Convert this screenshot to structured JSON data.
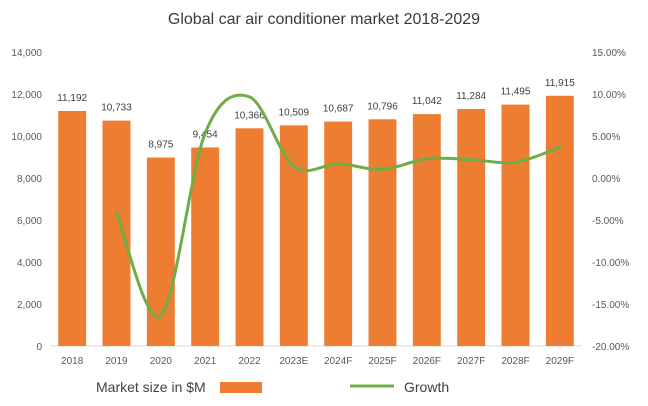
{
  "chart_data": {
    "type": "bar",
    "title": "Global car air conditioner market 2018-2029",
    "categories": [
      "2018",
      "2019",
      "2020",
      "2021",
      "2022",
      "2023E",
      "2024F",
      "2025F",
      "2026F",
      "2027F",
      "2028F",
      "2029F"
    ],
    "series": [
      {
        "name": "Market size in $M",
        "type": "bar",
        "axis": "left",
        "color": "#ED7D31",
        "values": [
          11192,
          10733,
          8975,
          9454,
          10366,
          10509,
          10687,
          10796,
          11042,
          11284,
          11495,
          11915
        ],
        "labels": [
          "11,192",
          "10,733",
          "8,975",
          "9,454",
          "10,366",
          "10,509",
          "10,687",
          "10,796",
          "11,042",
          "11,284",
          "11,495",
          "11,915"
        ]
      },
      {
        "name": "Growth",
        "type": "line",
        "axis": "right",
        "color": "#70AD47",
        "values": [
          null,
          -4.1,
          -16.38,
          5.34,
          9.65,
          1.38,
          1.69,
          1.02,
          2.28,
          2.19,
          1.87,
          3.65
        ]
      }
    ],
    "y_left": {
      "min": 0,
      "max": 14000,
      "ticks": [
        0,
        2000,
        4000,
        6000,
        8000,
        10000,
        12000,
        14000
      ],
      "tick_labels": [
        "0",
        "2,000",
        "4,000",
        "6,000",
        "8,000",
        "10,000",
        "12,000",
        "14,000"
      ]
    },
    "y_right": {
      "min": -20,
      "max": 15,
      "ticks": [
        -20,
        -15,
        -10,
        -5,
        0,
        5,
        10,
        15
      ],
      "tick_labels": [
        "-20.00%",
        "-15.00%",
        "-10.00%",
        "-5.00%",
        "0.00%",
        "5.00%",
        "10.00%",
        "15.00%"
      ]
    },
    "grid": false,
    "legend": "bottom"
  }
}
